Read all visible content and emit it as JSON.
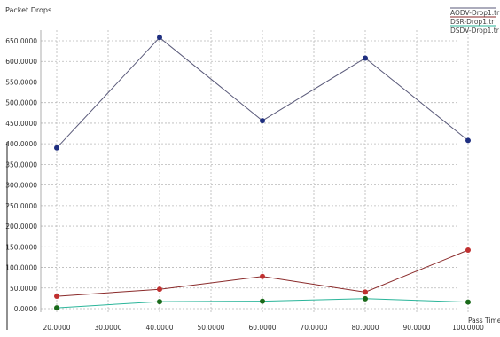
{
  "chart_data": {
    "type": "line",
    "ylabel": "Packet Drops",
    "xlabel": "Pass Time",
    "xlim": [
      20,
      100
    ],
    "ylim": [
      0,
      650
    ],
    "grid": true,
    "legend_position": "top-right",
    "x_ticks": [
      "20.0000",
      "30.0000",
      "40.0000",
      "50.0000",
      "60.0000",
      "70.0000",
      "80.0000",
      "90.0000",
      "100.0000"
    ],
    "y_ticks": [
      "0.0000",
      "50.0000",
      "100.0000",
      "150.0000",
      "200.0000",
      "250.0000",
      "300.0000",
      "350.0000",
      "400.0000",
      "450.0000",
      "500.0000",
      "550.0000",
      "600.0000",
      "650.0000"
    ],
    "x": [
      20,
      40,
      60,
      80,
      100
    ],
    "series": [
      {
        "name": "AODV-Drop1.tr",
        "color": "#5a5a7a",
        "marker_color": "#1f2f80",
        "values": [
          390,
          658,
          456,
          608,
          408
        ]
      },
      {
        "name": "DSR-Drop1.tr",
        "color": "#8a2a2a",
        "marker_color": "#c03030",
        "values": [
          30,
          47,
          78,
          40,
          142
        ]
      },
      {
        "name": "DSDV-Drop1.tr",
        "color": "#2bb59a",
        "marker_color": "#1a6a1a",
        "values": [
          2,
          17,
          18,
          24,
          16
        ]
      }
    ]
  }
}
